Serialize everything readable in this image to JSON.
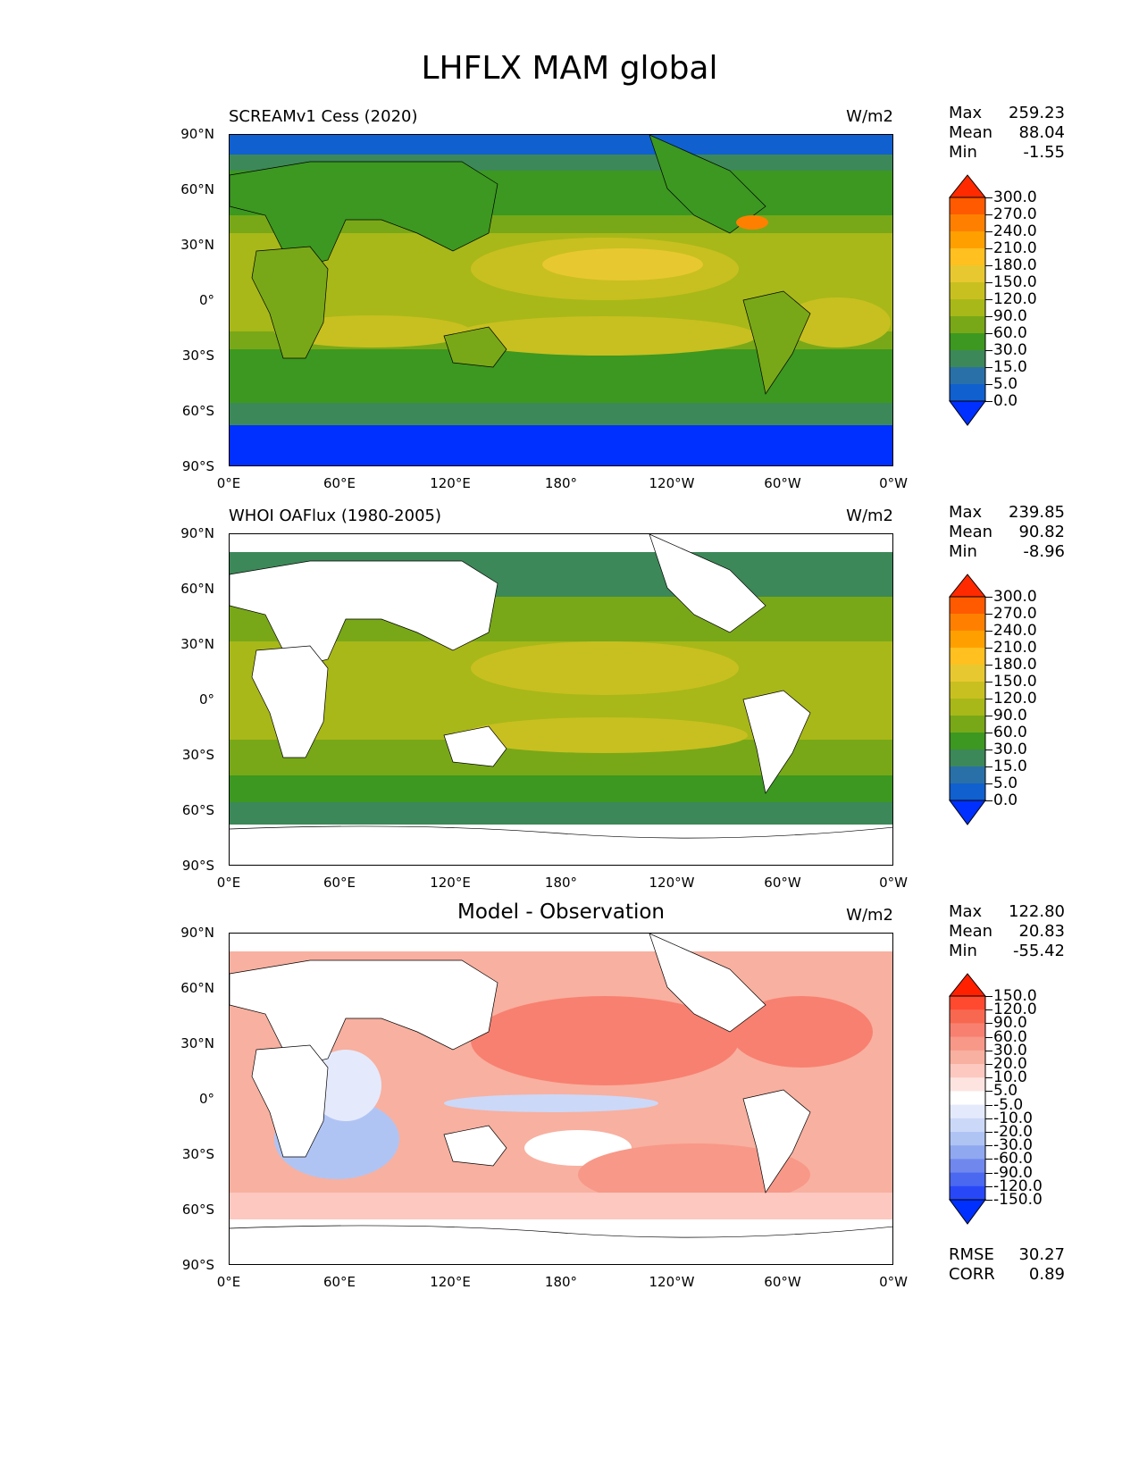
{
  "title": "LHFLX MAM global",
  "lat_labels": [
    "90°N",
    "60°N",
    "30°N",
    "0°",
    "30°S",
    "60°S",
    "90°S"
  ],
  "lon_labels": [
    "0°E",
    "60°E",
    "120°E",
    "180°",
    "120°W",
    "60°W",
    "0°W"
  ],
  "panels": [
    {
      "title": "SCREAMv1 Cess (2020)",
      "units": "W/m2",
      "stats": {
        "max_label": "Max",
        "max": "259.23",
        "mean_label": "Mean",
        "mean": "88.04",
        "min_label": "Min",
        "min": "-1.55"
      },
      "colorbar_labels": [
        "300.0",
        "270.0",
        "240.0",
        "210.0",
        "180.0",
        "150.0",
        "120.0",
        "90.0",
        "60.0",
        "30.0",
        "15.0",
        "5.0",
        "0.0"
      ],
      "colorbar_colors": [
        "#ff2a00",
        "#ff5a00",
        "#ff8000",
        "#ffa000",
        "#ffc020",
        "#e8c830",
        "#c8c020",
        "#a8b818",
        "#78a818",
        "#3c9820",
        "#3c8858",
        "#2a70a8",
        "#1060d0",
        "#0030ff"
      ]
    },
    {
      "title": "WHOI OAFlux (1980-2005)",
      "units": "W/m2",
      "stats": {
        "max_label": "Max",
        "max": "239.85",
        "mean_label": "Mean",
        "mean": "90.82",
        "min_label": "Min",
        "min": "-8.96"
      },
      "colorbar_labels": [
        "300.0",
        "270.0",
        "240.0",
        "210.0",
        "180.0",
        "150.0",
        "120.0",
        "90.0",
        "60.0",
        "30.0",
        "15.0",
        "5.0",
        "0.0"
      ],
      "colorbar_colors": [
        "#ff2a00",
        "#ff5a00",
        "#ff8000",
        "#ffa000",
        "#ffc020",
        "#e8c830",
        "#c8c020",
        "#a8b818",
        "#78a818",
        "#3c9820",
        "#3c8858",
        "#2a70a8",
        "#1060d0",
        "#0030ff"
      ]
    },
    {
      "title": "Model - Observation",
      "units": "W/m2",
      "stats": {
        "max_label": "Max",
        "max": "122.80",
        "mean_label": "Mean",
        "mean": "20.83",
        "min_label": "Min",
        "min": "-55.42"
      },
      "colorbar_labels": [
        "150.0",
        "120.0",
        "90.0",
        "60.0",
        "30.0",
        "20.0",
        "10.0",
        "5.0",
        "-5.0",
        "-10.0",
        "-20.0",
        "-30.0",
        "-60.0",
        "-90.0",
        "-120.0",
        "-150.0"
      ],
      "colorbar_colors": [
        "#ff2000",
        "#ff4a30",
        "#f86850",
        "#f88070",
        "#f89888",
        "#f8b0a0",
        "#fcc8c0",
        "#fde4e0",
        "#ffffff",
        "#e4eafc",
        "#ccd8f8",
        "#b0c4f4",
        "#90a8f0",
        "#7088ee",
        "#4a68f0",
        "#2848f8",
        "#0030ff"
      ],
      "rmse_label": "RMSE",
      "rmse": "30.27",
      "corr_label": "CORR",
      "corr": "0.89"
    }
  ]
}
